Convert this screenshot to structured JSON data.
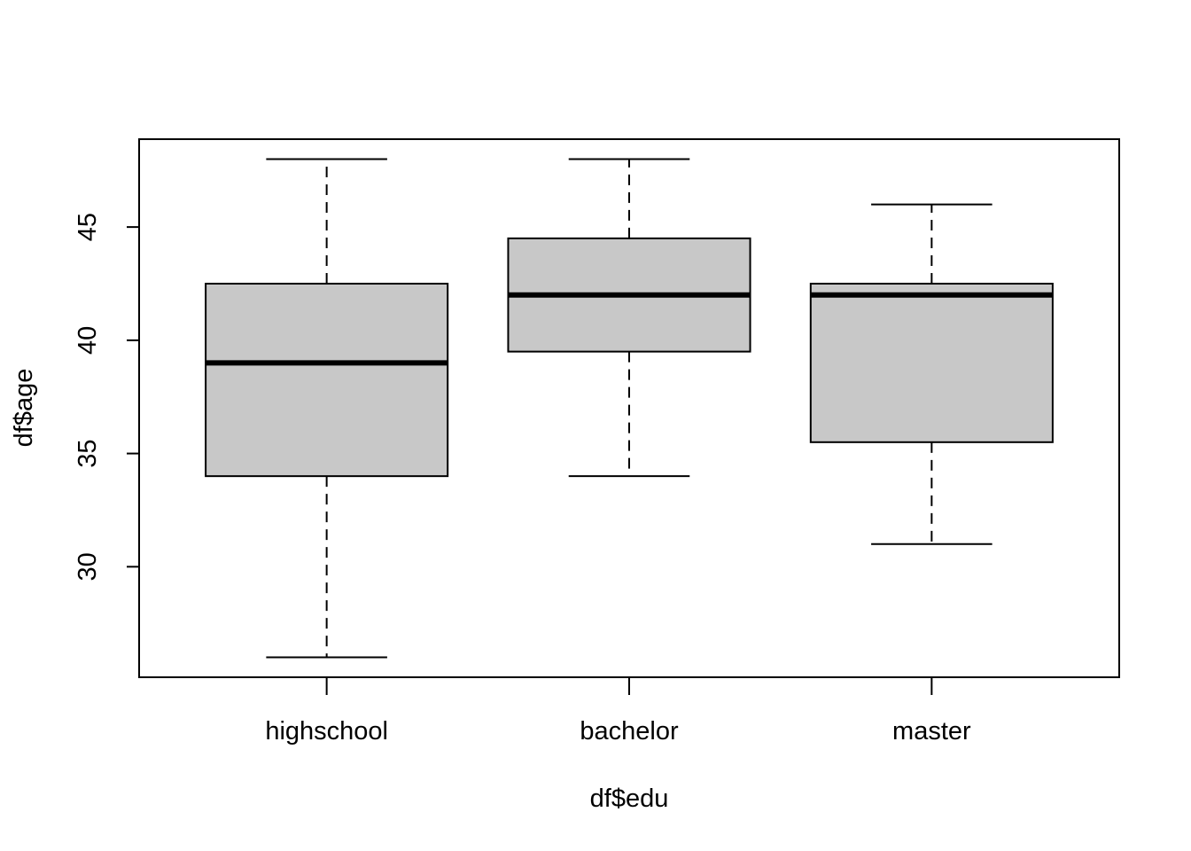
{
  "chart_data": {
    "type": "boxplot",
    "xlabel": "df$edu",
    "ylabel": "df$age",
    "categories": [
      "highschool",
      "bachelor",
      "master"
    ],
    "boxes": [
      {
        "category": "highschool",
        "whisker_low": 26,
        "q1": 34,
        "median": 39,
        "q3": 42.5,
        "whisker_high": 48
      },
      {
        "category": "bachelor",
        "whisker_low": 34,
        "q1": 39.5,
        "median": 42,
        "q3": 44.5,
        "whisker_high": 48
      },
      {
        "category": "master",
        "whisker_low": 31,
        "q1": 35.5,
        "median": 42,
        "q3": 42.5,
        "whisker_high": 46
      }
    ],
    "y_ticks": [
      30,
      35,
      40,
      45
    ],
    "y_tick_labels": [
      "30",
      "35",
      "40",
      "45"
    ],
    "ylim": [
      25.12,
      48.88
    ],
    "grid": false,
    "box_fill": "#c8c8c8",
    "line_color": "#000000"
  }
}
